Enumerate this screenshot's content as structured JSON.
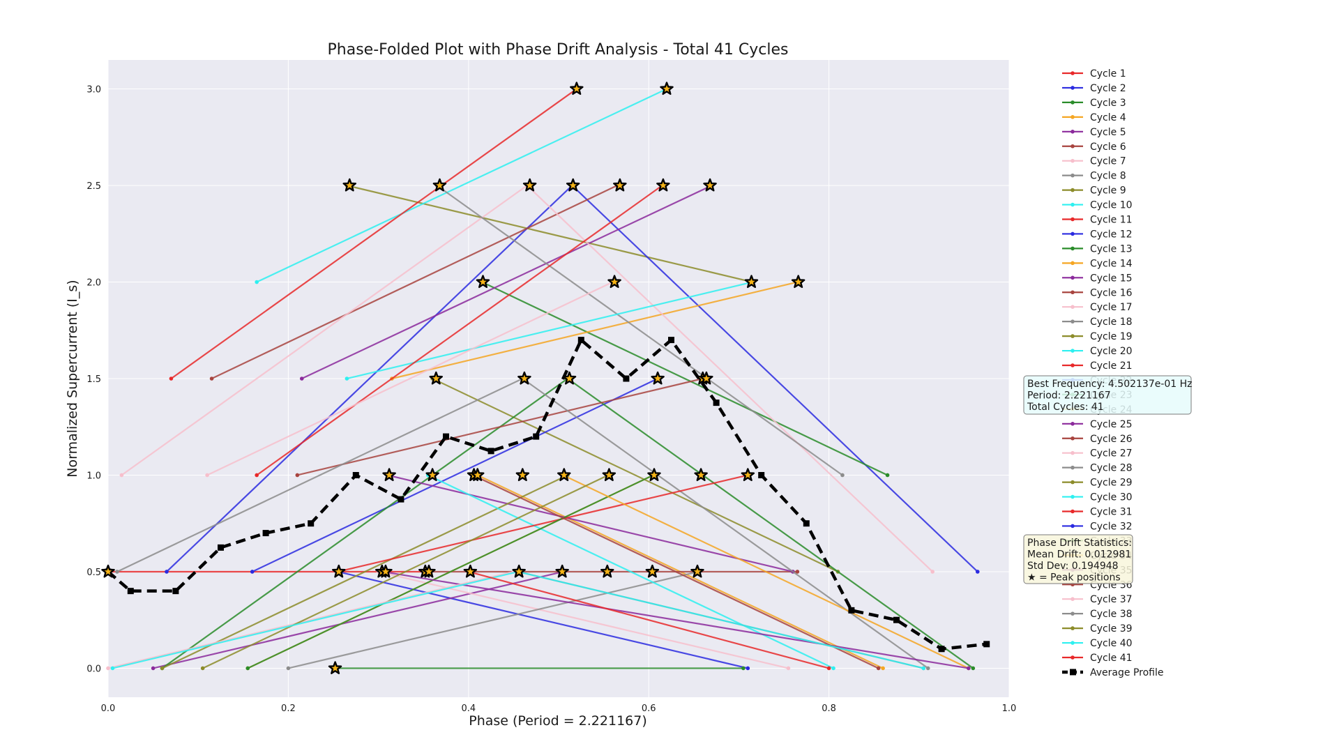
{
  "chart_data": {
    "type": "line",
    "title": "Phase-Folded Plot with Phase Drift Analysis - Total 41 Cycles",
    "xlabel": "Phase (Period = 2.221167)",
    "ylabel": "Normalized Supercurrent (I_s)",
    "xlim": [
      0.0,
      1.0
    ],
    "ylim": [
      -0.15,
      3.15
    ],
    "xticks": [
      "0.0",
      "0.2",
      "0.4",
      "0.6",
      "0.8",
      "1.0"
    ],
    "yticks": [
      "0.0",
      "0.5",
      "1.0",
      "1.5",
      "2.0",
      "2.5",
      "3.0"
    ],
    "grid": true,
    "legend_position": "right",
    "colors": {
      "red": "#e8292a",
      "blue": "#2b2be0",
      "green": "#2a8c2a",
      "orange": "#f5a623",
      "purple": "#8b2a9c",
      "brown": "#a8443f",
      "pink": "#f7bfcc",
      "gray": "#8c8c8c",
      "olive": "#8c8c2a",
      "cyan": "#2ef0f0",
      "background": "#eaeaf2",
      "average": "#000000",
      "info_box": "#e6fbfb",
      "drift_box": "#f8f6dc"
    },
    "series": [
      {
        "name": "Cycle 1",
        "color": "red",
        "x": [
          0.0,
          0.35
        ],
        "y": [
          0.5,
          0.5
        ]
      },
      {
        "name": "Cycle 2",
        "color": "blue",
        "x": [
          0.255,
          0.71
        ],
        "y": [
          0.5,
          0.0
        ]
      },
      {
        "name": "Cycle 3",
        "color": "green",
        "x": [
          0.25,
          0.705
        ],
        "y": [
          0.0,
          0.0
        ]
      },
      {
        "name": "Cycle 4",
        "color": "orange",
        "x": [
          0.41,
          0.86
        ],
        "y": [
          1.0,
          0.0
        ]
      },
      {
        "name": "Cycle 5",
        "color": "purple",
        "x": [
          0.05,
          0.505
        ],
        "y": [
          0.0,
          0.5
        ]
      },
      {
        "name": "Cycle 6",
        "color": "brown",
        "x": [
          0.35,
          0.765
        ],
        "y": [
          0.5,
          0.5
        ]
      },
      {
        "name": "Cycle 7",
        "color": "pink",
        "x": [
          0.3,
          0.755
        ],
        "y": [
          0.5,
          0.0
        ]
      },
      {
        "name": "Cycle 8",
        "color": "gray",
        "x": [
          0.2,
          0.655
        ],
        "y": [
          0.0,
          0.5
        ]
      },
      {
        "name": "Cycle 9",
        "color": "olive",
        "x": [
          0.265,
          0.715
        ],
        "y": [
          2.5,
          2.0
        ]
      },
      {
        "name": "Cycle 10",
        "color": "cyan",
        "x": [
          0.165,
          0.62
        ],
        "y": [
          2.0,
          3.0
        ]
      },
      {
        "name": "Cycle 11",
        "color": "red",
        "x": [
          0.07,
          0.52
        ],
        "y": [
          1.5,
          3.0
        ]
      },
      {
        "name": "Cycle 12",
        "color": "blue",
        "x": [
          0.065,
          0.515,
          0.965
        ],
        "y": [
          0.5,
          2.5,
          0.5
        ]
      },
      {
        "name": "Cycle 13",
        "color": "green",
        "x": [
          0.415,
          0.865
        ],
        "y": [
          2.0,
          1.0
        ]
      },
      {
        "name": "Cycle 14",
        "color": "orange",
        "x": [
          0.315,
          0.765
        ],
        "y": [
          1.5,
          2.0
        ]
      },
      {
        "name": "Cycle 15",
        "color": "purple",
        "x": [
          0.215,
          0.67
        ],
        "y": [
          1.5,
          2.5
        ]
      },
      {
        "name": "Cycle 16",
        "color": "brown",
        "x": [
          0.115,
          0.565
        ],
        "y": [
          1.5,
          2.5
        ]
      },
      {
        "name": "Cycle 17",
        "color": "pink",
        "x": [
          0.015,
          0.465,
          0.915
        ],
        "y": [
          1.0,
          2.5,
          0.5
        ]
      },
      {
        "name": "Cycle 18",
        "color": "gray",
        "x": [
          0.365,
          0.815
        ],
        "y": [
          2.5,
          1.0
        ]
      },
      {
        "name": "Cycle 19",
        "color": "olive",
        "x": [
          0.36,
          0.81
        ],
        "y": [
          1.5,
          0.5
        ]
      },
      {
        "name": "Cycle 20",
        "color": "cyan",
        "x": [
          0.265,
          0.715
        ],
        "y": [
          1.5,
          2.0
        ]
      },
      {
        "name": "Cycle 21",
        "color": "red",
        "x": [
          0.165,
          0.615
        ],
        "y": [
          1.0,
          2.5
        ]
      },
      {
        "name": "Cycle 22",
        "color": "blue",
        "x": [
          0.16,
          0.61
        ],
        "y": [
          0.5,
          1.5
        ]
      },
      {
        "name": "Cycle 23",
        "color": "green",
        "x": [
          0.06,
          0.51,
          0.96
        ],
        "y": [
          0.0,
          1.5,
          0.0
        ]
      },
      {
        "name": "Cycle 24",
        "color": "orange",
        "x": [
          0.155,
          0.605
        ],
        "y": [
          0.0,
          1.0
        ]
      },
      {
        "name": "Cycle 25",
        "color": "purple",
        "x": [
          0.31,
          0.76
        ],
        "y": [
          1.0,
          0.5
        ]
      },
      {
        "name": "Cycle 26",
        "color": "brown",
        "x": [
          0.21,
          0.66
        ],
        "y": [
          1.0,
          1.5
        ]
      },
      {
        "name": "Cycle 27",
        "color": "pink",
        "x": [
          0.11,
          0.56
        ],
        "y": [
          1.0,
          2.0
        ]
      },
      {
        "name": "Cycle 28",
        "color": "gray",
        "x": [
          0.01,
          0.46,
          0.91
        ],
        "y": [
          0.5,
          1.5,
          0.0
        ]
      },
      {
        "name": "Cycle 29",
        "color": "olive",
        "x": [
          0.06,
          0.51
        ],
        "y": [
          0.0,
          1.0
        ]
      },
      {
        "name": "Cycle 30",
        "color": "cyan",
        "x": [
          0.355,
          0.805
        ],
        "y": [
          1.0,
          0.0
        ]
      },
      {
        "name": "Cycle 31",
        "color": "red",
        "x": [
          0.255,
          0.71
        ],
        "y": [
          0.5,
          1.0
        ]
      },
      {
        "name": "Cycle 32",
        "color": "blue",
        "x": [
          0.0,
          0.0
        ],
        "y": [
          0.5,
          0.5
        ]
      },
      {
        "name": "Cycle 33",
        "color": "green",
        "x": [
          0.155,
          0.605
        ],
        "y": [
          0.0,
          1.0
        ]
      },
      {
        "name": "Cycle 34",
        "color": "orange",
        "x": [
          0.505,
          0.955
        ],
        "y": [
          1.0,
          0.0
        ]
      },
      {
        "name": "Cycle 35",
        "color": "purple",
        "x": [
          0.305,
          0.955
        ],
        "y": [
          0.5,
          0.0
        ]
      },
      {
        "name": "Cycle 36",
        "color": "brown",
        "x": [
          0.405,
          0.855
        ],
        "y": [
          1.0,
          0.0
        ]
      },
      {
        "name": "Cycle 37",
        "color": "pink",
        "x": [
          0.0,
          0.45
        ],
        "y": [
          0.0,
          0.5
        ]
      },
      {
        "name": "Cycle 38",
        "color": "gray",
        "x": [
          0.455,
          0.905
        ],
        "y": [
          0.5,
          0.0
        ]
      },
      {
        "name": "Cycle 39",
        "color": "olive",
        "x": [
          0.105,
          0.555
        ],
        "y": [
          0.0,
          1.0
        ]
      },
      {
        "name": "Cycle 40",
        "color": "cyan",
        "x": [
          0.005,
          0.455,
          0.905
        ],
        "y": [
          0.0,
          0.5,
          0.0
        ]
      },
      {
        "name": "Cycle 41",
        "color": "red",
        "x": [
          0.4,
          0.8
        ],
        "y": [
          0.5,
          0.0
        ]
      }
    ],
    "average_profile": {
      "name": "Average Profile",
      "x": [
        0.0,
        0.025,
        0.075,
        0.125,
        0.175,
        0.225,
        0.275,
        0.325,
        0.375,
        0.425,
        0.475,
        0.525,
        0.575,
        0.625,
        0.675,
        0.725,
        0.775,
        0.825,
        0.875,
        0.925,
        0.975
      ],
      "y": [
        0.5,
        0.4,
        0.4,
        0.625,
        0.7,
        0.75,
        1.0,
        0.875,
        1.2,
        1.125,
        1.2,
        1.7,
        1.5,
        1.7,
        1.375,
        1.0,
        0.75,
        0.3,
        0.25,
        0.1,
        0.125
      ]
    },
    "peaks": [
      {
        "x": 0.52,
        "y": 3.0
      },
      {
        "x": 0.62,
        "y": 3.0
      },
      {
        "x": 0.268,
        "y": 2.5
      },
      {
        "x": 0.368,
        "y": 2.5
      },
      {
        "x": 0.468,
        "y": 2.5
      },
      {
        "x": 0.516,
        "y": 2.5
      },
      {
        "x": 0.568,
        "y": 2.5
      },
      {
        "x": 0.616,
        "y": 2.5
      },
      {
        "x": 0.668,
        "y": 2.5
      },
      {
        "x": 0.416,
        "y": 2.0
      },
      {
        "x": 0.562,
        "y": 2.0
      },
      {
        "x": 0.714,
        "y": 2.0
      },
      {
        "x": 0.766,
        "y": 2.0
      },
      {
        "x": 0.364,
        "y": 1.5
      },
      {
        "x": 0.462,
        "y": 1.5
      },
      {
        "x": 0.512,
        "y": 1.5
      },
      {
        "x": 0.61,
        "y": 1.5
      },
      {
        "x": 0.66,
        "y": 1.5
      },
      {
        "x": 0.664,
        "y": 1.5
      },
      {
        "x": 0.312,
        "y": 1.0
      },
      {
        "x": 0.36,
        "y": 1.0
      },
      {
        "x": 0.406,
        "y": 1.0
      },
      {
        "x": 0.41,
        "y": 1.0
      },
      {
        "x": 0.46,
        "y": 1.0
      },
      {
        "x": 0.506,
        "y": 1.0
      },
      {
        "x": 0.556,
        "y": 1.0
      },
      {
        "x": 0.606,
        "y": 1.0
      },
      {
        "x": 0.658,
        "y": 1.0
      },
      {
        "x": 0.71,
        "y": 1.0
      },
      {
        "x": 0.0,
        "y": 0.5
      },
      {
        "x": 0.256,
        "y": 0.5
      },
      {
        "x": 0.304,
        "y": 0.5
      },
      {
        "x": 0.308,
        "y": 0.5
      },
      {
        "x": 0.352,
        "y": 0.5
      },
      {
        "x": 0.356,
        "y": 0.5
      },
      {
        "x": 0.402,
        "y": 0.5
      },
      {
        "x": 0.456,
        "y": 0.5
      },
      {
        "x": 0.504,
        "y": 0.5
      },
      {
        "x": 0.554,
        "y": 0.5
      },
      {
        "x": 0.604,
        "y": 0.5
      },
      {
        "x": 0.654,
        "y": 0.5
      },
      {
        "x": 0.252,
        "y": 0.0
      }
    ]
  },
  "info_box": {
    "lines": [
      "Best Frequency: 4.502137e-01 Hz",
      "Period: 2.221167",
      "Total Cycles: 41"
    ]
  },
  "drift_box": {
    "lines": [
      "Phase Drift Statistics:",
      "Mean Drift: 0.012981",
      "Std Dev: 0.194948",
      "★ = Peak positions"
    ]
  }
}
